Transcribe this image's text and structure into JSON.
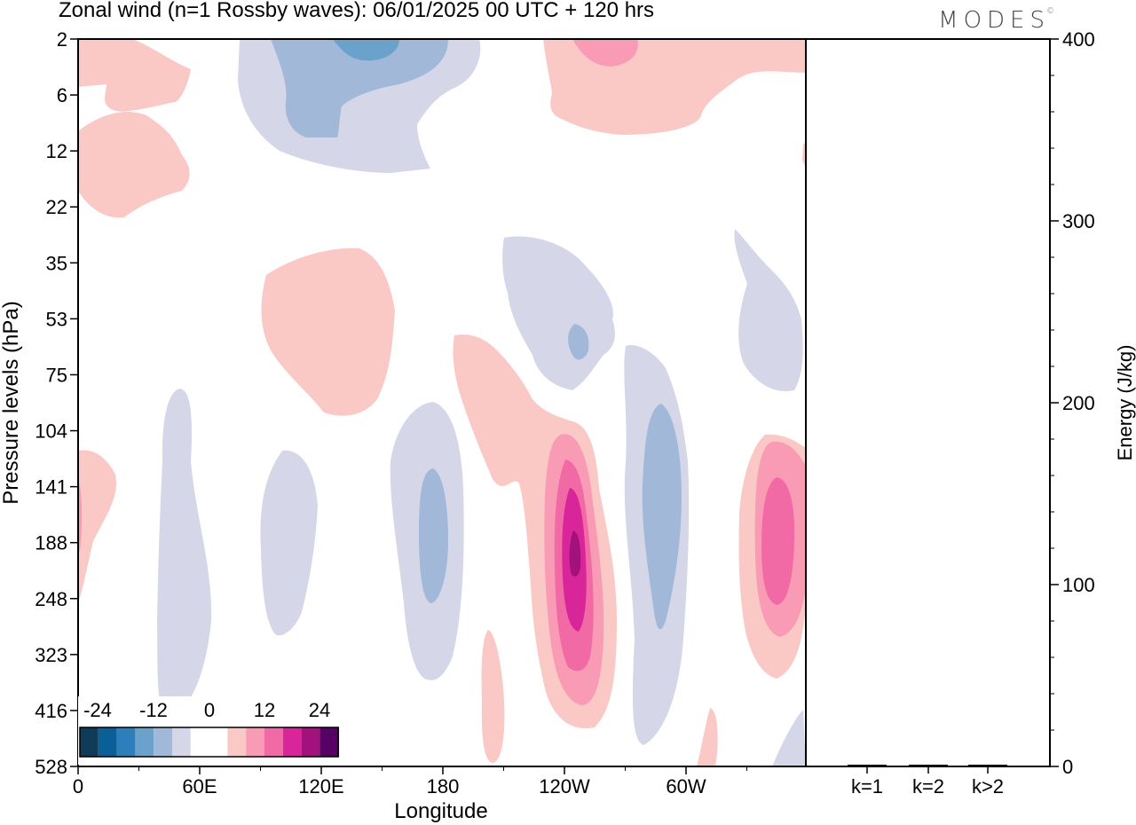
{
  "header": {
    "title": "Zonal wind (n=1 Rossby waves):  06/01/2025  00 UTC  + 120 hrs",
    "brand": "MODES",
    "brand_mark": "©"
  },
  "chart_data": [
    {
      "type": "contour",
      "title": "Zonal wind (n=1 Rossby waves):  06/01/2025  00 UTC  + 120 hrs",
      "xlabel": "Longitude",
      "ylabel": "Pressure levels (hPa)",
      "x_ticks": [
        "0",
        "60E",
        "120E",
        "180",
        "120W",
        "60W"
      ],
      "y_ticks": [
        "2",
        "6",
        "12",
        "22",
        "35",
        "53",
        "75",
        "104",
        "141",
        "188",
        "248",
        "323",
        "416",
        "528"
      ],
      "y_scale": "log",
      "colorbar": {
        "labels": [
          "-24",
          "-12",
          "0",
          "12",
          "24"
        ],
        "colors": [
          "#0f3b59",
          "#0b5f97",
          "#2d7fbb",
          "#6aa2cc",
          "#a1b8d8",
          "#d5d7e8",
          "#ffffff",
          "#ffffff",
          "#fac9c6",
          "#f99bb5",
          "#f26aa5",
          "#d8259a",
          "#a3117c",
          "#570167"
        ],
        "placement": "bottom-left"
      }
    },
    {
      "type": "bar",
      "ylabel": "Energy (J/kg)",
      "categories": [
        "k=1",
        "k=2",
        "k>2"
      ],
      "values": [
        0.5,
        0.5,
        0.5
      ],
      "ylim": [
        0,
        400
      ],
      "y_ticks": [
        "0",
        "100",
        "200",
        "300",
        "400"
      ]
    }
  ]
}
